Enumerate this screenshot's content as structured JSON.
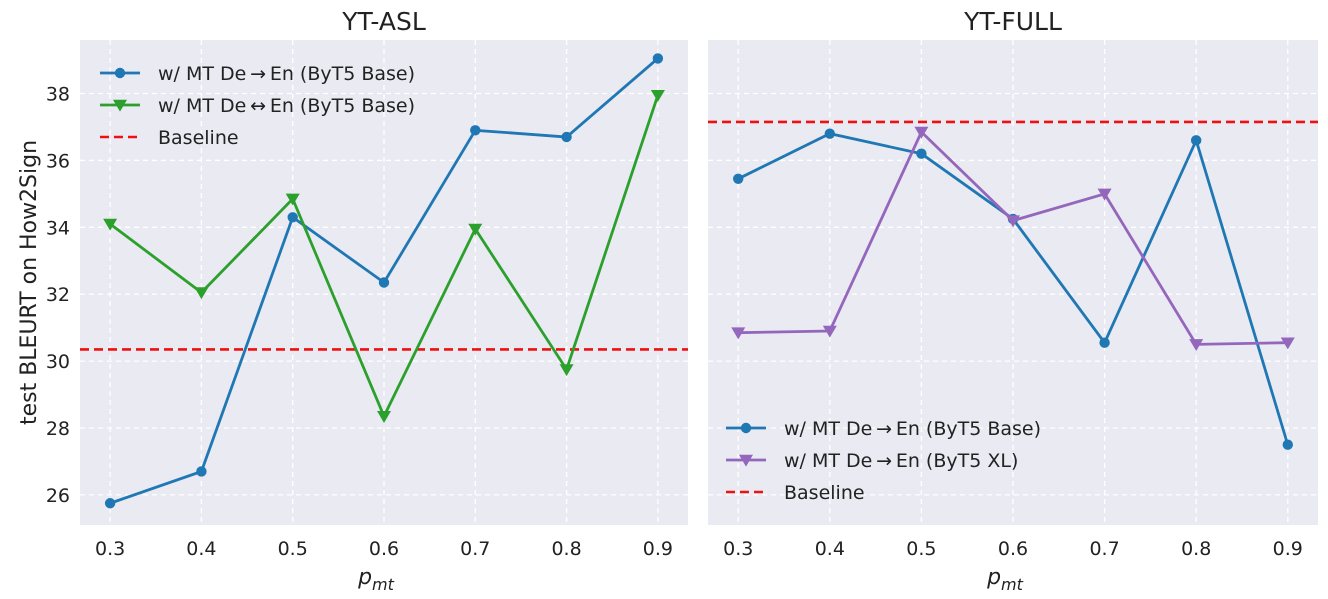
{
  "chart_data": [
    {
      "type": "line",
      "title": "YT-ASL",
      "xlabel_base": "p",
      "xlabel_sub": "mt",
      "ylabel": "test BLEURT on How2Sign",
      "x": [
        0.3,
        0.4,
        0.5,
        0.6,
        0.7,
        0.8,
        0.9
      ],
      "xtick_labels": [
        "0.3",
        "0.4",
        "0.5",
        "0.6",
        "0.7",
        "0.8",
        "0.9"
      ],
      "ylim": [
        25.1,
        39.6
      ],
      "yticks": [
        26,
        28,
        30,
        32,
        34,
        36,
        38
      ],
      "ytick_labels": [
        "26",
        "28",
        "30",
        "32",
        "34",
        "36",
        "38"
      ],
      "grid": true,
      "legend_position": "top-left",
      "baseline": {
        "name": "Baseline",
        "value": 30.35,
        "color": "#ee1111"
      },
      "series": [
        {
          "name": "w/ MT De → En (ByT5 Base)",
          "marker": "circle",
          "color": "#1f77b4",
          "values": [
            25.75,
            26.7,
            34.3,
            32.35,
            36.9,
            36.7,
            39.05
          ]
        },
        {
          "name": "w/ MT De ↔ En (ByT5 Base)",
          "marker": "triangle-down",
          "color": "#2ca02c",
          "values": [
            34.1,
            32.05,
            34.85,
            28.35,
            33.95,
            29.75,
            37.95
          ]
        }
      ]
    },
    {
      "type": "line",
      "title": "YT-FULL",
      "xlabel_base": "p",
      "xlabel_sub": "mt",
      "x": [
        0.3,
        0.4,
        0.5,
        0.6,
        0.7,
        0.8,
        0.9
      ],
      "xtick_labels": [
        "0.3",
        "0.4",
        "0.5",
        "0.6",
        "0.7",
        "0.8",
        "0.9"
      ],
      "ylim": [
        25.1,
        39.6
      ],
      "grid": true,
      "legend_position": "bottom-left",
      "baseline": {
        "name": "Baseline",
        "value": 37.15,
        "color": "#ee1111"
      },
      "series": [
        {
          "name": "w/ MT De → En (ByT5 Base)",
          "marker": "circle",
          "color": "#1f77b4",
          "values": [
            35.45,
            36.8,
            36.2,
            34.25,
            30.55,
            36.6,
            27.5
          ]
        },
        {
          "name": "w/ MT De → En (ByT5 XL)",
          "marker": "triangle-down",
          "color": "#9467bd",
          "values": [
            30.85,
            30.9,
            36.85,
            34.2,
            35.0,
            30.5,
            30.55
          ]
        }
      ]
    }
  ]
}
